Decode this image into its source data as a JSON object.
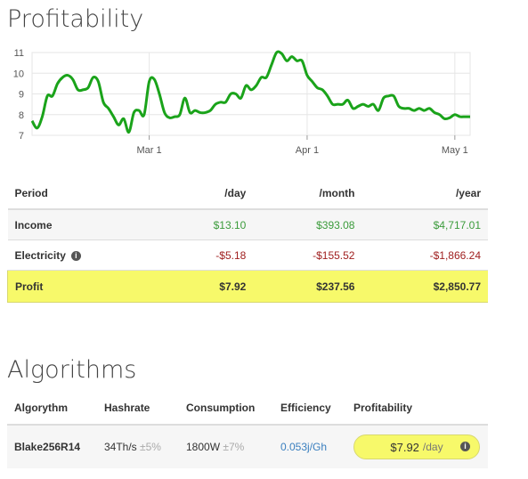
{
  "profitability": {
    "title": "Profitability"
  },
  "chart_data": {
    "type": "line",
    "title": "",
    "xlabel": "",
    "ylabel": "",
    "ylim": [
      7,
      11
    ],
    "yticks": [
      7,
      8,
      9,
      10,
      11
    ],
    "xticks": [
      {
        "label": "Mar 1",
        "x": 23
      },
      {
        "label": "Apr 1",
        "x": 54
      },
      {
        "label": "May 1",
        "x": 83
      }
    ],
    "grid": true,
    "legend": "none",
    "color": "#1aa31a",
    "x": [
      0,
      1,
      2,
      3,
      4,
      5,
      6,
      7,
      8,
      9,
      10,
      11,
      12,
      13,
      14,
      15,
      16,
      17,
      18,
      19,
      20,
      21,
      22,
      23,
      24,
      25,
      26,
      27,
      28,
      29,
      30,
      31,
      32,
      33,
      34,
      35,
      36,
      37,
      38,
      39,
      40,
      41,
      42,
      43,
      44,
      45,
      46,
      47,
      48,
      49,
      50,
      51,
      52,
      53,
      54,
      55,
      56,
      57,
      58,
      59,
      60,
      61,
      62,
      63,
      64,
      65,
      66,
      67,
      68,
      69,
      70,
      71,
      72,
      73,
      74,
      75,
      76,
      77,
      78,
      79,
      80,
      81,
      82,
      83,
      84,
      85,
      86
    ],
    "values": [
      7.7,
      7.35,
      7.9,
      8.9,
      8.9,
      9.5,
      9.8,
      9.9,
      9.7,
      9.2,
      9.2,
      9.3,
      9.8,
      9.6,
      8.6,
      8.3,
      7.9,
      7.5,
      7.8,
      7.15,
      8.1,
      8.2,
      8.0,
      9.6,
      9.7,
      9.0,
      8.1,
      7.85,
      7.9,
      8.0,
      8.8,
      8.1,
      8.2,
      8.1,
      8.1,
      8.2,
      8.5,
      8.6,
      8.6,
      9.0,
      9.0,
      8.8,
      9.4,
      9.2,
      9.4,
      9.8,
      9.8,
      10.4,
      11.0,
      10.95,
      10.6,
      10.8,
      10.6,
      10.6,
      9.9,
      9.6,
      9.3,
      9.2,
      8.9,
      8.5,
      8.5,
      8.5,
      8.7,
      8.3,
      8.4,
      8.5,
      8.4,
      8.5,
      8.2,
      8.8,
      8.9,
      8.9,
      8.4,
      8.3,
      8.3,
      8.2,
      8.3,
      8.2,
      8.3,
      8.1,
      8.0,
      7.8,
      7.85,
      8.0,
      7.9,
      7.9,
      7.9
    ]
  },
  "period_table": {
    "headers": [
      "Period",
      "/day",
      "/month",
      "/year"
    ],
    "income": {
      "label": "Income",
      "day": "$13.10",
      "month": "$393.08",
      "year": "$4,717.01"
    },
    "electricity": {
      "label": "Electricity",
      "day": "-$5.18",
      "month": "-$155.52",
      "year": "-$1,866.24"
    },
    "profit": {
      "label": "Profit",
      "day": "$7.92",
      "month": "$237.56",
      "year": "$2,850.77"
    }
  },
  "algorithms": {
    "title": "Algorithms",
    "headers": [
      "Algorythm",
      "Hashrate",
      "Consumption",
      "Efficiency",
      "Profitability"
    ],
    "row": {
      "name": "Blake256R14",
      "hashrate": "34Th/s",
      "hashrate_tol": "±5%",
      "consumption": "1800W",
      "consumption_tol": "±7%",
      "efficiency": "0.053j/Gh",
      "profit_value": "$7.92",
      "profit_unit": "/day"
    }
  },
  "icons": {
    "info": "i"
  }
}
